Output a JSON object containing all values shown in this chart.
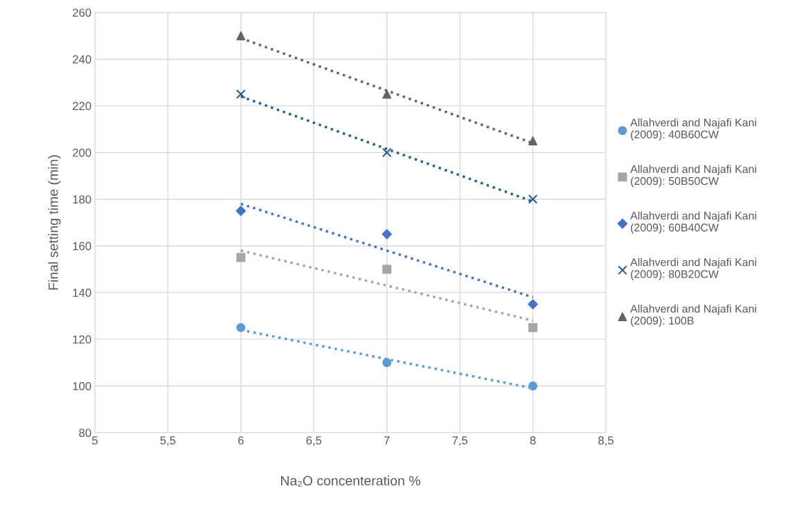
{
  "chart_data": {
    "type": "scatter",
    "xlabel": "Na₂O concenteration %",
    "ylabel": "Final setting time (min)",
    "xlim": [
      5,
      8.5
    ],
    "xticks": [
      5,
      {
        "value": 5.5,
        "label": "5,5"
      },
      6,
      {
        "value": 6.5,
        "label": "6,5"
      },
      7,
      {
        "value": 7.5,
        "label": "7,5"
      },
      8,
      {
        "value": 8.5,
        "label": "8,5"
      }
    ],
    "ylim": [
      80,
      260
    ],
    "yticks": [
      80,
      100,
      120,
      140,
      160,
      180,
      200,
      220,
      240,
      260
    ],
    "grid": true,
    "legend": "right",
    "series": [
      {
        "name": "Allahverdi and Najafi Kani\n(2009): 40B60CW",
        "marker": "circle",
        "color": "#5b9bd5",
        "x": [
          6,
          7,
          8
        ],
        "values": [
          125,
          110,
          100
        ]
      },
      {
        "name": "Allahverdi and Najafi Kani\n(2009): 50B50CW",
        "marker": "square",
        "color": "#a5a5a5",
        "x": [
          6,
          7,
          8
        ],
        "values": [
          155,
          150,
          125
        ]
      },
      {
        "name": "Allahverdi and Najafi Kani\n(2009): 60B40CW",
        "marker": "diamond",
        "color": "#4472c4",
        "x": [
          6,
          7,
          8
        ],
        "values": [
          175,
          165,
          135
        ]
      },
      {
        "name": "Allahverdi and Najafi Kani\n(2009): 80B20CW",
        "marker": "cross",
        "color": "#255e91",
        "x": [
          6,
          7,
          8
        ],
        "values": [
          225,
          200,
          180
        ]
      },
      {
        "name": "Allahverdi and Najafi Kani\n(2009): 100B",
        "marker": "triangle",
        "color": "#636363",
        "x": [
          6,
          7,
          8
        ],
        "values": [
          250,
          225,
          205
        ]
      },
      {
        "type": "line",
        "line_style": "dotted",
        "marker": "none",
        "color": "#5b9bd5",
        "x": [
          6,
          8
        ],
        "values": [
          124,
          99
        ]
      },
      {
        "type": "line",
        "line_style": "dotted",
        "marker": "none",
        "color": "#a5a5a5",
        "x": [
          6,
          8
        ],
        "values": [
          158,
          128
        ]
      },
      {
        "type": "line",
        "line_style": "dotted",
        "marker": "none",
        "color": "#4472c4",
        "x": [
          6,
          8
        ],
        "values": [
          178,
          138
        ]
      },
      {
        "type": "line",
        "line_style": "dotted",
        "marker": "none",
        "color": "#255e91",
        "x": [
          6,
          8
        ],
        "values": [
          224,
          179
        ]
      },
      {
        "type": "line",
        "line_style": "dotted",
        "marker": "none",
        "color": "#636363",
        "x": [
          6,
          8
        ],
        "values": [
          249,
          204
        ]
      }
    ]
  }
}
